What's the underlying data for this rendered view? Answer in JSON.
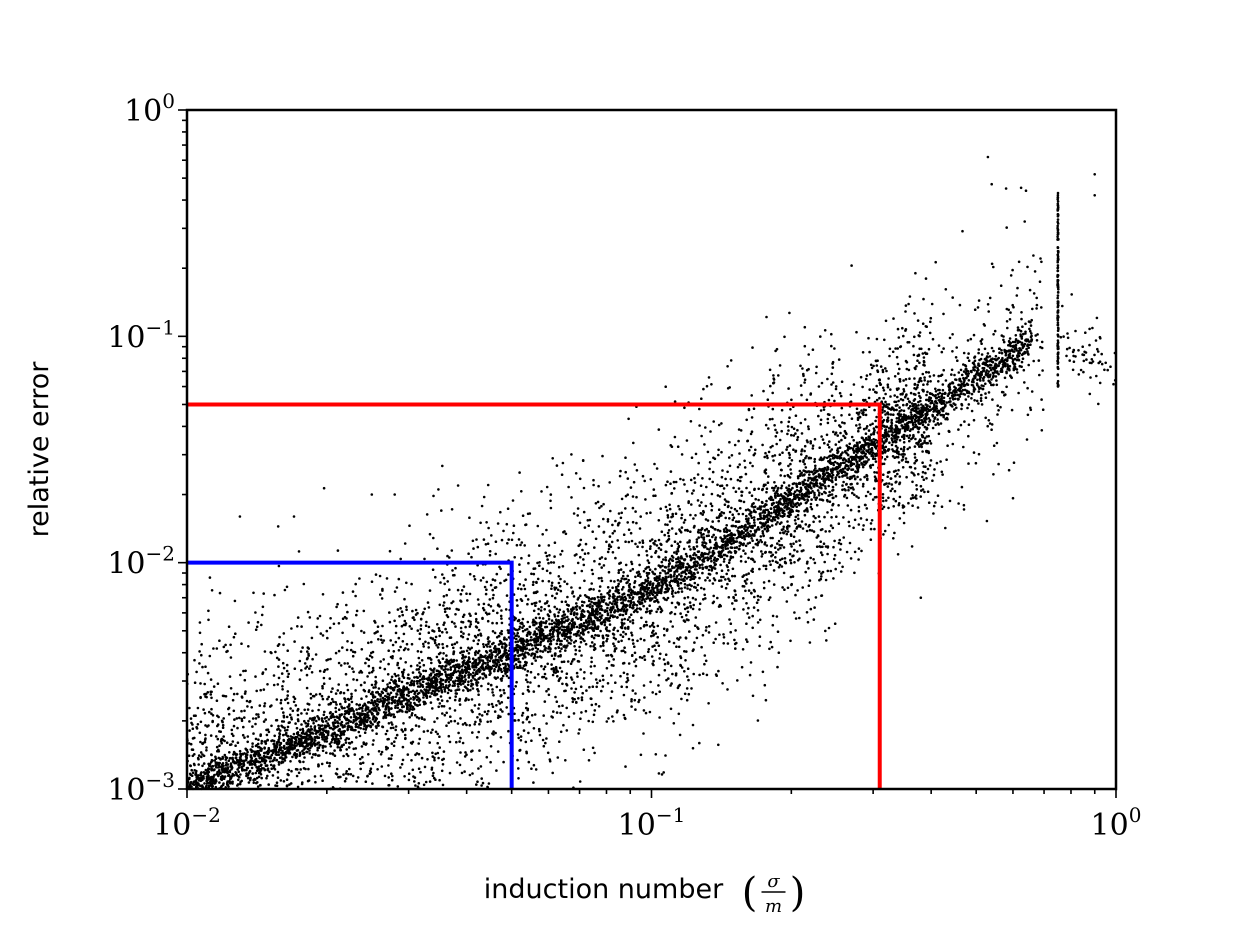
{
  "chart_data": {
    "type": "scatter",
    "title": "",
    "xlabel": "induction number",
    "xlabel_fraction": {
      "numerator": "σ",
      "denominator": "m"
    },
    "ylabel": "relative error",
    "x_scale": "log",
    "y_scale": "log",
    "xlim": [
      0.01,
      1
    ],
    "ylim": [
      0.001,
      1
    ],
    "x_ticks": [
      {
        "value": 0.01,
        "base": "10",
        "exp": "−2"
      },
      {
        "value": 0.1,
        "base": "10",
        "exp": "−1"
      },
      {
        "value": 1,
        "base": "10",
        "exp": "0"
      }
    ],
    "y_ticks": [
      {
        "value": 0.001,
        "base": "10",
        "exp": "−3"
      },
      {
        "value": 0.01,
        "base": "10",
        "exp": "−2"
      },
      {
        "value": 0.1,
        "base": "10",
        "exp": "−1"
      },
      {
        "value": 1,
        "base": "10",
        "exp": "0"
      }
    ],
    "grid": false,
    "legend": "none",
    "marker_color": "#000000",
    "scatter_trend": {
      "description_points": [
        {
          "x": 0.01,
          "y": 0.001
        },
        {
          "x": 0.05,
          "y": 0.004
        },
        {
          "x": 0.1,
          "y": 0.0075
        },
        {
          "x": 0.3,
          "y": 0.033
        },
        {
          "x": 0.66,
          "y": 0.095
        }
      ]
    },
    "scatter_notable_points": [
      {
        "x": 0.53,
        "y": 0.62
      },
      {
        "x": 0.54,
        "y": 0.47
      },
      {
        "x": 0.58,
        "y": 0.45
      },
      {
        "x": 0.64,
        "y": 0.44
      },
      {
        "x": 0.9,
        "y": 0.52
      },
      {
        "x": 0.9,
        "y": 0.42
      },
      {
        "x": 0.75,
        "y": 0.43
      },
      {
        "x": 0.75,
        "y": 0.06
      },
      {
        "x": 0.013,
        "y": 0.016
      },
      {
        "x": 0.017,
        "y": 0.016
      },
      {
        "x": 0.025,
        "y": 0.02
      },
      {
        "x": 0.028,
        "y": 0.02
      },
      {
        "x": 0.052,
        "y": 0.025
      },
      {
        "x": 0.11,
        "y": 0.033
      },
      {
        "x": 0.36,
        "y": 0.15
      },
      {
        "x": 0.37,
        "y": 0.19
      },
      {
        "x": 0.39,
        "y": 0.18
      },
      {
        "x": 0.38,
        "y": 0.007
      },
      {
        "x": 0.31,
        "y": 0.002
      }
    ],
    "threshold_lines": [
      {
        "name": "",
        "color": "#ff0000",
        "y": 0.05,
        "x": 0.31
      },
      {
        "name": "",
        "color": "#0000ff",
        "y": 0.01,
        "x": 0.05
      }
    ]
  }
}
